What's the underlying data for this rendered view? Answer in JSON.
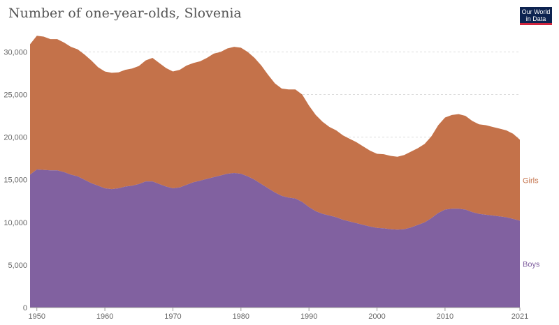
{
  "header": {
    "title": "Number of one-year-olds, Slovenia",
    "logo_text": "Our World in Data"
  },
  "colors": {
    "girls": "#c4724a",
    "boys": "#8161a0"
  },
  "chart_data": {
    "type": "area",
    "stacked": true,
    "title": "Number of one-year-olds, Slovenia",
    "xlabel": "",
    "ylabel": "",
    "xlim": [
      1950,
      2021
    ],
    "ylim": [
      0,
      30000
    ],
    "yticks": [
      0,
      5000,
      10000,
      15000,
      20000,
      25000,
      30000
    ],
    "ytick_labels": [
      "0",
      "5,000",
      "10,000",
      "15,000",
      "20,000",
      "25,000",
      "30,000"
    ],
    "xticks": [
      1950,
      1960,
      1970,
      1980,
      1990,
      2000,
      2010,
      2021
    ],
    "xtick_labels": [
      "1950",
      "1960",
      "1970",
      "1980",
      "1990",
      "2000",
      "2010",
      "2021"
    ],
    "grid": true,
    "legend": "right",
    "x": [
      1949,
      1950,
      1951,
      1952,
      1953,
      1954,
      1955,
      1956,
      1957,
      1958,
      1959,
      1960,
      1961,
      1962,
      1963,
      1964,
      1965,
      1966,
      1967,
      1968,
      1969,
      1970,
      1971,
      1972,
      1973,
      1974,
      1975,
      1976,
      1977,
      1978,
      1979,
      1980,
      1981,
      1982,
      1983,
      1984,
      1985,
      1986,
      1987,
      1988,
      1989,
      1990,
      1991,
      1992,
      1993,
      1994,
      1995,
      1996,
      1997,
      1998,
      1999,
      2000,
      2001,
      2002,
      2003,
      2004,
      2005,
      2006,
      2007,
      2008,
      2009,
      2010,
      2011,
      2012,
      2013,
      2014,
      2015,
      2016,
      2017,
      2018,
      2019,
      2020,
      2021
    ],
    "series": [
      {
        "name": "Boys",
        "values": [
          15600,
          16200,
          16150,
          16100,
          16100,
          15900,
          15600,
          15400,
          15000,
          14600,
          14300,
          14000,
          13900,
          14000,
          14200,
          14300,
          14500,
          14800,
          14800,
          14500,
          14200,
          14000,
          14100,
          14400,
          14700,
          14900,
          15100,
          15300,
          15500,
          15700,
          15800,
          15700,
          15400,
          15000,
          14500,
          14000,
          13500,
          13100,
          12900,
          12800,
          12400,
          11800,
          11300,
          11000,
          10800,
          10600,
          10300,
          10100,
          9900,
          9700,
          9500,
          9350,
          9300,
          9200,
          9150,
          9200,
          9400,
          9700,
          10000,
          10500,
          11100,
          11500,
          11600,
          11600,
          11500,
          11200,
          11000,
          10900,
          10800,
          10700,
          10600,
          10400,
          10200
        ]
      },
      {
        "name": "Girls",
        "values": [
          15300,
          15700,
          15650,
          15400,
          15400,
          15200,
          15000,
          14900,
          14700,
          14400,
          13900,
          13700,
          13650,
          13600,
          13700,
          13750,
          13850,
          14200,
          14500,
          14200,
          13900,
          13700,
          13800,
          14000,
          14000,
          14000,
          14200,
          14500,
          14500,
          14700,
          14800,
          14800,
          14600,
          14300,
          13900,
          13300,
          12800,
          12600,
          12700,
          12800,
          12600,
          11900,
          11300,
          10800,
          10400,
          10200,
          9900,
          9700,
          9500,
          9200,
          8900,
          8700,
          8700,
          8600,
          8550,
          8700,
          8900,
          9000,
          9200,
          9600,
          10300,
          10800,
          11000,
          11100,
          11000,
          10700,
          10500,
          10500,
          10400,
          10300,
          10200,
          10000,
          9500
        ]
      }
    ]
  }
}
